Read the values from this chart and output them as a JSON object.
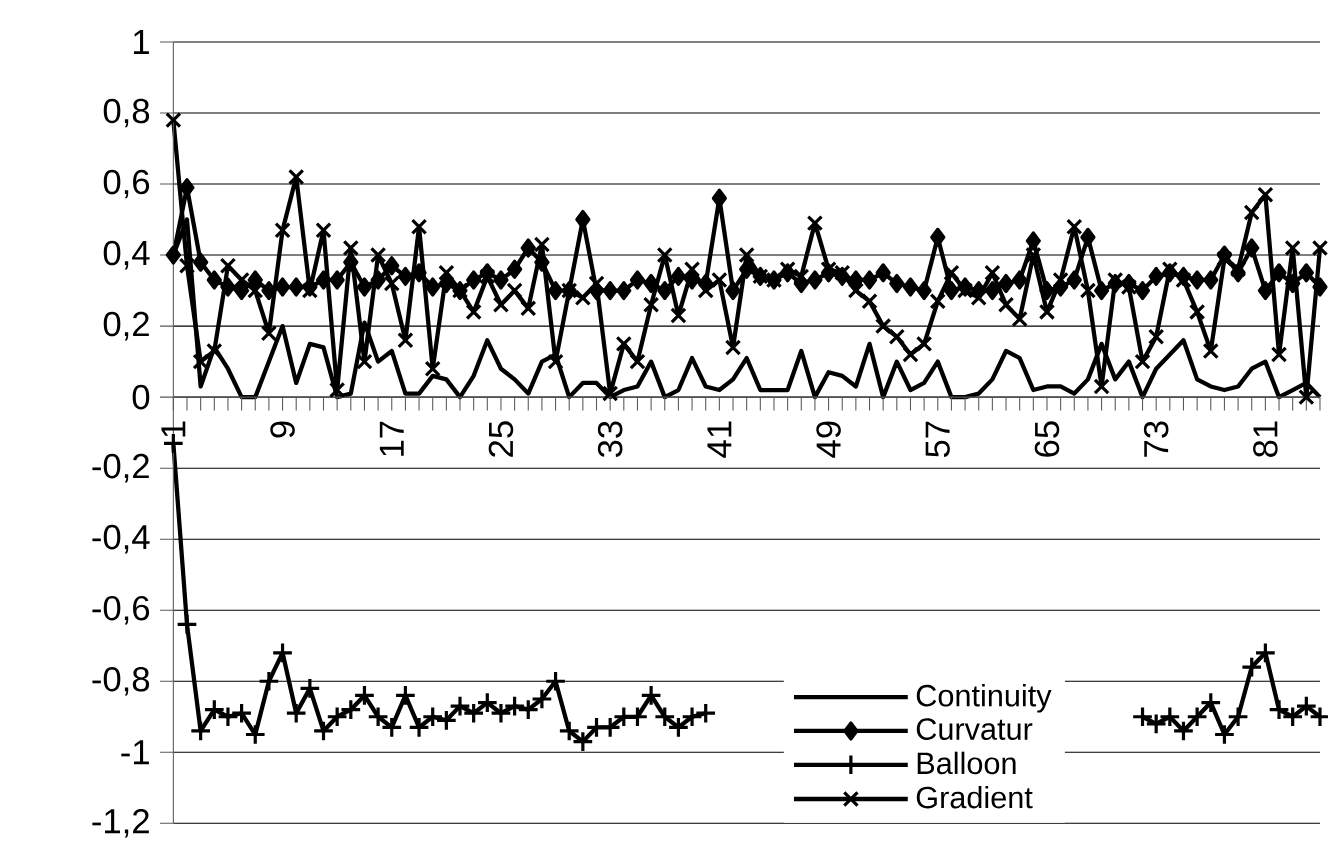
{
  "chart_data": {
    "type": "line",
    "categories": [
      "1",
      null,
      null,
      null,
      null,
      null,
      null,
      null,
      "9",
      null,
      null,
      null,
      null,
      null,
      null,
      null,
      "17",
      null,
      null,
      null,
      null,
      null,
      null,
      null,
      "25",
      null,
      null,
      null,
      null,
      null,
      null,
      null,
      "33",
      null,
      null,
      null,
      null,
      null,
      null,
      null,
      "41",
      null,
      null,
      null,
      null,
      null,
      null,
      null,
      "49",
      null,
      null,
      null,
      null,
      null,
      null,
      null,
      "57",
      null,
      null,
      null,
      null,
      null,
      null,
      null,
      "65",
      null,
      null,
      null,
      null,
      null,
      null,
      null,
      "73",
      null,
      null,
      null,
      null,
      null,
      null,
      null,
      "81",
      null,
      null,
      null,
      null
    ],
    "series": [
      {
        "name": "Continuity",
        "color": "#000000",
        "marker": "none",
        "values": [
          0.4,
          0.5,
          0.03,
          0.14,
          0.08,
          0,
          0,
          0.1,
          0.2,
          0.04,
          0.15,
          0.14,
          0,
          0.01,
          0.21,
          0.1,
          0.13,
          0.01,
          0.01,
          0.06,
          0.05,
          0,
          0.06,
          0.16,
          0.08,
          0.05,
          0.01,
          0.1,
          0.12,
          0,
          0.04,
          0.04,
          0,
          0.02,
          0.03,
          0.1,
          0,
          0.02,
          0.11,
          0.03,
          0.02,
          0.05,
          0.11,
          0.02,
          0.02,
          0.02,
          0.13,
          0,
          0.07,
          0.06,
          0.03,
          0.15,
          0,
          0.1,
          0.02,
          0.04,
          0.1,
          0,
          0,
          0.01,
          0.05,
          0.13,
          0.11,
          0.02,
          0.03,
          0.03,
          0.01,
          0.05,
          0.15,
          0.05,
          0.1,
          0,
          0.08,
          0.12,
          0.16,
          0.05,
          0.03,
          0.02,
          0.03,
          0.08,
          0.1,
          0,
          0.02,
          0.04,
          0
        ]
      },
      {
        "name": "Curvatur",
        "color": "#000000",
        "marker": "diamond",
        "values": [
          0.4,
          0.59,
          0.38,
          0.33,
          0.31,
          0.3,
          0.33,
          0.3,
          0.31,
          0.31,
          0.31,
          0.33,
          0.33,
          0.38,
          0.31,
          0.33,
          0.37,
          0.34,
          0.35,
          0.31,
          0.32,
          0.3,
          0.33,
          0.35,
          0.33,
          0.36,
          0.42,
          0.38,
          0.3,
          0.3,
          0.5,
          0.3,
          0.3,
          0.3,
          0.33,
          0.32,
          0.3,
          0.34,
          0.33,
          0.32,
          0.56,
          0.3,
          0.36,
          0.34,
          0.33,
          0.35,
          0.32,
          0.33,
          0.35,
          0.34,
          0.33,
          0.33,
          0.35,
          0.32,
          0.31,
          0.3,
          0.45,
          0.3,
          0.31,
          0.3,
          0.3,
          0.32,
          0.33,
          0.44,
          0.3,
          0.31,
          0.33,
          0.45,
          0.3,
          0.32,
          0.32,
          0.3,
          0.34,
          0.35,
          0.34,
          0.33,
          0.33,
          0.4,
          0.35,
          0.42,
          0.3,
          0.35,
          0.32,
          0.35,
          0.31
        ]
      },
      {
        "name": "Balloon",
        "color": "#000000",
        "marker": "plus",
        "values": [
          -0.13,
          -0.64,
          -0.94,
          -0.88,
          -0.9,
          -0.89,
          -0.95,
          -0.8,
          -0.72,
          -0.89,
          -0.82,
          -0.94,
          -0.9,
          -0.88,
          -0.84,
          -0.9,
          -0.93,
          -0.84,
          -0.93,
          -0.9,
          -0.91,
          -0.87,
          -0.89,
          -0.86,
          -0.89,
          -0.87,
          -0.88,
          -0.85,
          -0.8,
          -0.94,
          -0.97,
          -0.93,
          -0.93,
          -0.9,
          -0.9,
          -0.84,
          -0.9,
          -0.93,
          -0.9,
          -0.89,
          null,
          null,
          null,
          null,
          null,
          null,
          null,
          null,
          null,
          null,
          null,
          null,
          null,
          null,
          null,
          null,
          null,
          null,
          null,
          null,
          null,
          null,
          null,
          null,
          null,
          null,
          null,
          null,
          null,
          null,
          null,
          -0.9,
          -0.92,
          -0.9,
          -0.94,
          -0.9,
          -0.86,
          -0.95,
          -0.9,
          -0.76,
          -0.72,
          -0.88,
          -0.9,
          -0.87,
          -0.9
        ]
      },
      {
        "name": "Gradient",
        "color": "#000000",
        "marker": "cross",
        "values": [
          0.78,
          0.37,
          0.1,
          0.13,
          0.37,
          0.33,
          0.3,
          0.18,
          0.47,
          0.62,
          0.3,
          0.47,
          0.02,
          0.42,
          0.1,
          0.4,
          0.32,
          0.16,
          0.48,
          0.08,
          0.35,
          0.3,
          0.24,
          0.34,
          0.26,
          0.3,
          0.25,
          0.43,
          0.1,
          0.3,
          0.28,
          0.32,
          0.01,
          0.15,
          0.1,
          0.26,
          0.4,
          0.23,
          0.36,
          0.3,
          0.33,
          0.14,
          0.4,
          0.34,
          0.33,
          0.36,
          0.34,
          0.49,
          0.36,
          0.35,
          0.3,
          0.27,
          0.2,
          0.17,
          0.12,
          0.15,
          0.27,
          0.35,
          0.3,
          0.28,
          0.35,
          0.26,
          0.22,
          0.4,
          0.24,
          0.33,
          0.48,
          0.3,
          0.03,
          0.33,
          0.31,
          0.1,
          0.17,
          0.36,
          0.33,
          0.24,
          0.13,
          0.39,
          0.36,
          0.52,
          0.57,
          0.12,
          0.42,
          0,
          0.42
        ]
      }
    ],
    "ylim": [
      -1.2,
      1
    ],
    "yticks": [
      1,
      {
        "value": 0.8,
        "label": "0,8"
      },
      {
        "value": 0.6,
        "label": "0,6"
      },
      {
        "value": 0.4,
        "label": "0,4"
      },
      {
        "value": 0.2,
        "label": "0,2"
      },
      0,
      {
        "value": -0.2,
        "label": "-0,2"
      },
      {
        "value": -0.4,
        "label": "-0,4"
      },
      {
        "value": -0.6,
        "label": "-0,6"
      },
      {
        "value": -0.8,
        "label": "-0,8"
      },
      -1,
      {
        "value": -1.2,
        "label": "-1,2"
      }
    ],
    "grid": "y",
    "legend": "bottom"
  }
}
